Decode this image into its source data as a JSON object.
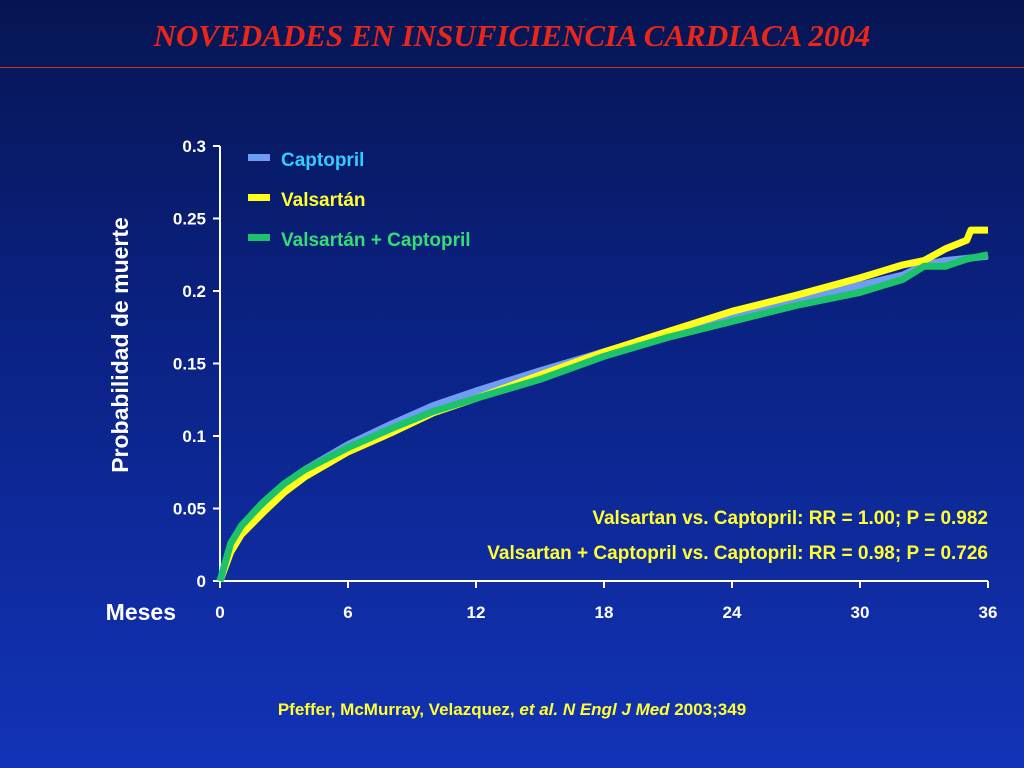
{
  "title": "NOVEDADES EN INSUFICIENCIA CARDIACA 2004",
  "citation": {
    "authors": "Pfeffer, McMurray, Velazquez, ",
    "etal": "et al. N Engl J Med",
    "rest": " 2003;349"
  },
  "chart_data": {
    "type": "line",
    "xlabel": "Meses",
    "ylabel": "Probabilidad de muerte",
    "xlim": [
      0,
      36
    ],
    "ylim": [
      0,
      0.3
    ],
    "xticks": [
      "0",
      "6",
      "12",
      "18",
      "24",
      "30",
      "36"
    ],
    "yticks": [
      "0",
      "0.05",
      "0.1",
      "0.15",
      "0.2",
      "0.25",
      "0.3"
    ],
    "grid": false,
    "legend_position": "top-left",
    "series": [
      {
        "name": "Captopril",
        "color": "#6f9cf5",
        "x": [
          0,
          0.5,
          1,
          2,
          3,
          4,
          6,
          8,
          10,
          12,
          15,
          18,
          21,
          24,
          27,
          30,
          32,
          33,
          34,
          36
        ],
        "y": [
          0,
          0.025,
          0.037,
          0.053,
          0.066,
          0.077,
          0.094,
          0.108,
          0.121,
          0.131,
          0.145,
          0.158,
          0.171,
          0.183,
          0.193,
          0.204,
          0.211,
          0.218,
          0.221,
          0.224
        ]
      },
      {
        "name": "Valsartán",
        "color": "#ffff1a",
        "x": [
          0,
          0.5,
          1,
          2,
          3,
          4,
          6,
          8,
          10,
          12,
          15,
          18,
          21,
          24,
          27,
          30,
          32,
          33,
          34,
          35,
          35.2,
          36
        ],
        "y": [
          0,
          0.02,
          0.032,
          0.047,
          0.061,
          0.072,
          0.089,
          0.102,
          0.116,
          0.126,
          0.142,
          0.158,
          0.172,
          0.186,
          0.197,
          0.209,
          0.218,
          0.221,
          0.229,
          0.235,
          0.242,
          0.242
        ]
      },
      {
        "name": "Valsartán + Captopril",
        "color": "#1dc36a",
        "x": [
          0,
          0.5,
          1,
          2,
          3,
          4,
          6,
          8,
          10,
          12,
          15,
          18,
          21,
          24,
          27,
          30,
          32,
          33,
          34,
          35,
          36
        ],
        "y": [
          0,
          0.026,
          0.038,
          0.054,
          0.067,
          0.077,
          0.092,
          0.105,
          0.117,
          0.126,
          0.139,
          0.155,
          0.168,
          0.179,
          0.19,
          0.199,
          0.208,
          0.217,
          0.217,
          0.222,
          0.225
        ]
      }
    ],
    "annotations": [
      "Valsartan vs. Captopril: RR = 1.00; P = 0.982",
      "Valsartan + Captopril vs. Captopril: RR = 0.98; P = 0.726"
    ],
    "annotation_color": "#ffff33",
    "legend_text_colors": [
      "#33ccff",
      "#ffff33",
      "#33dd77"
    ]
  }
}
